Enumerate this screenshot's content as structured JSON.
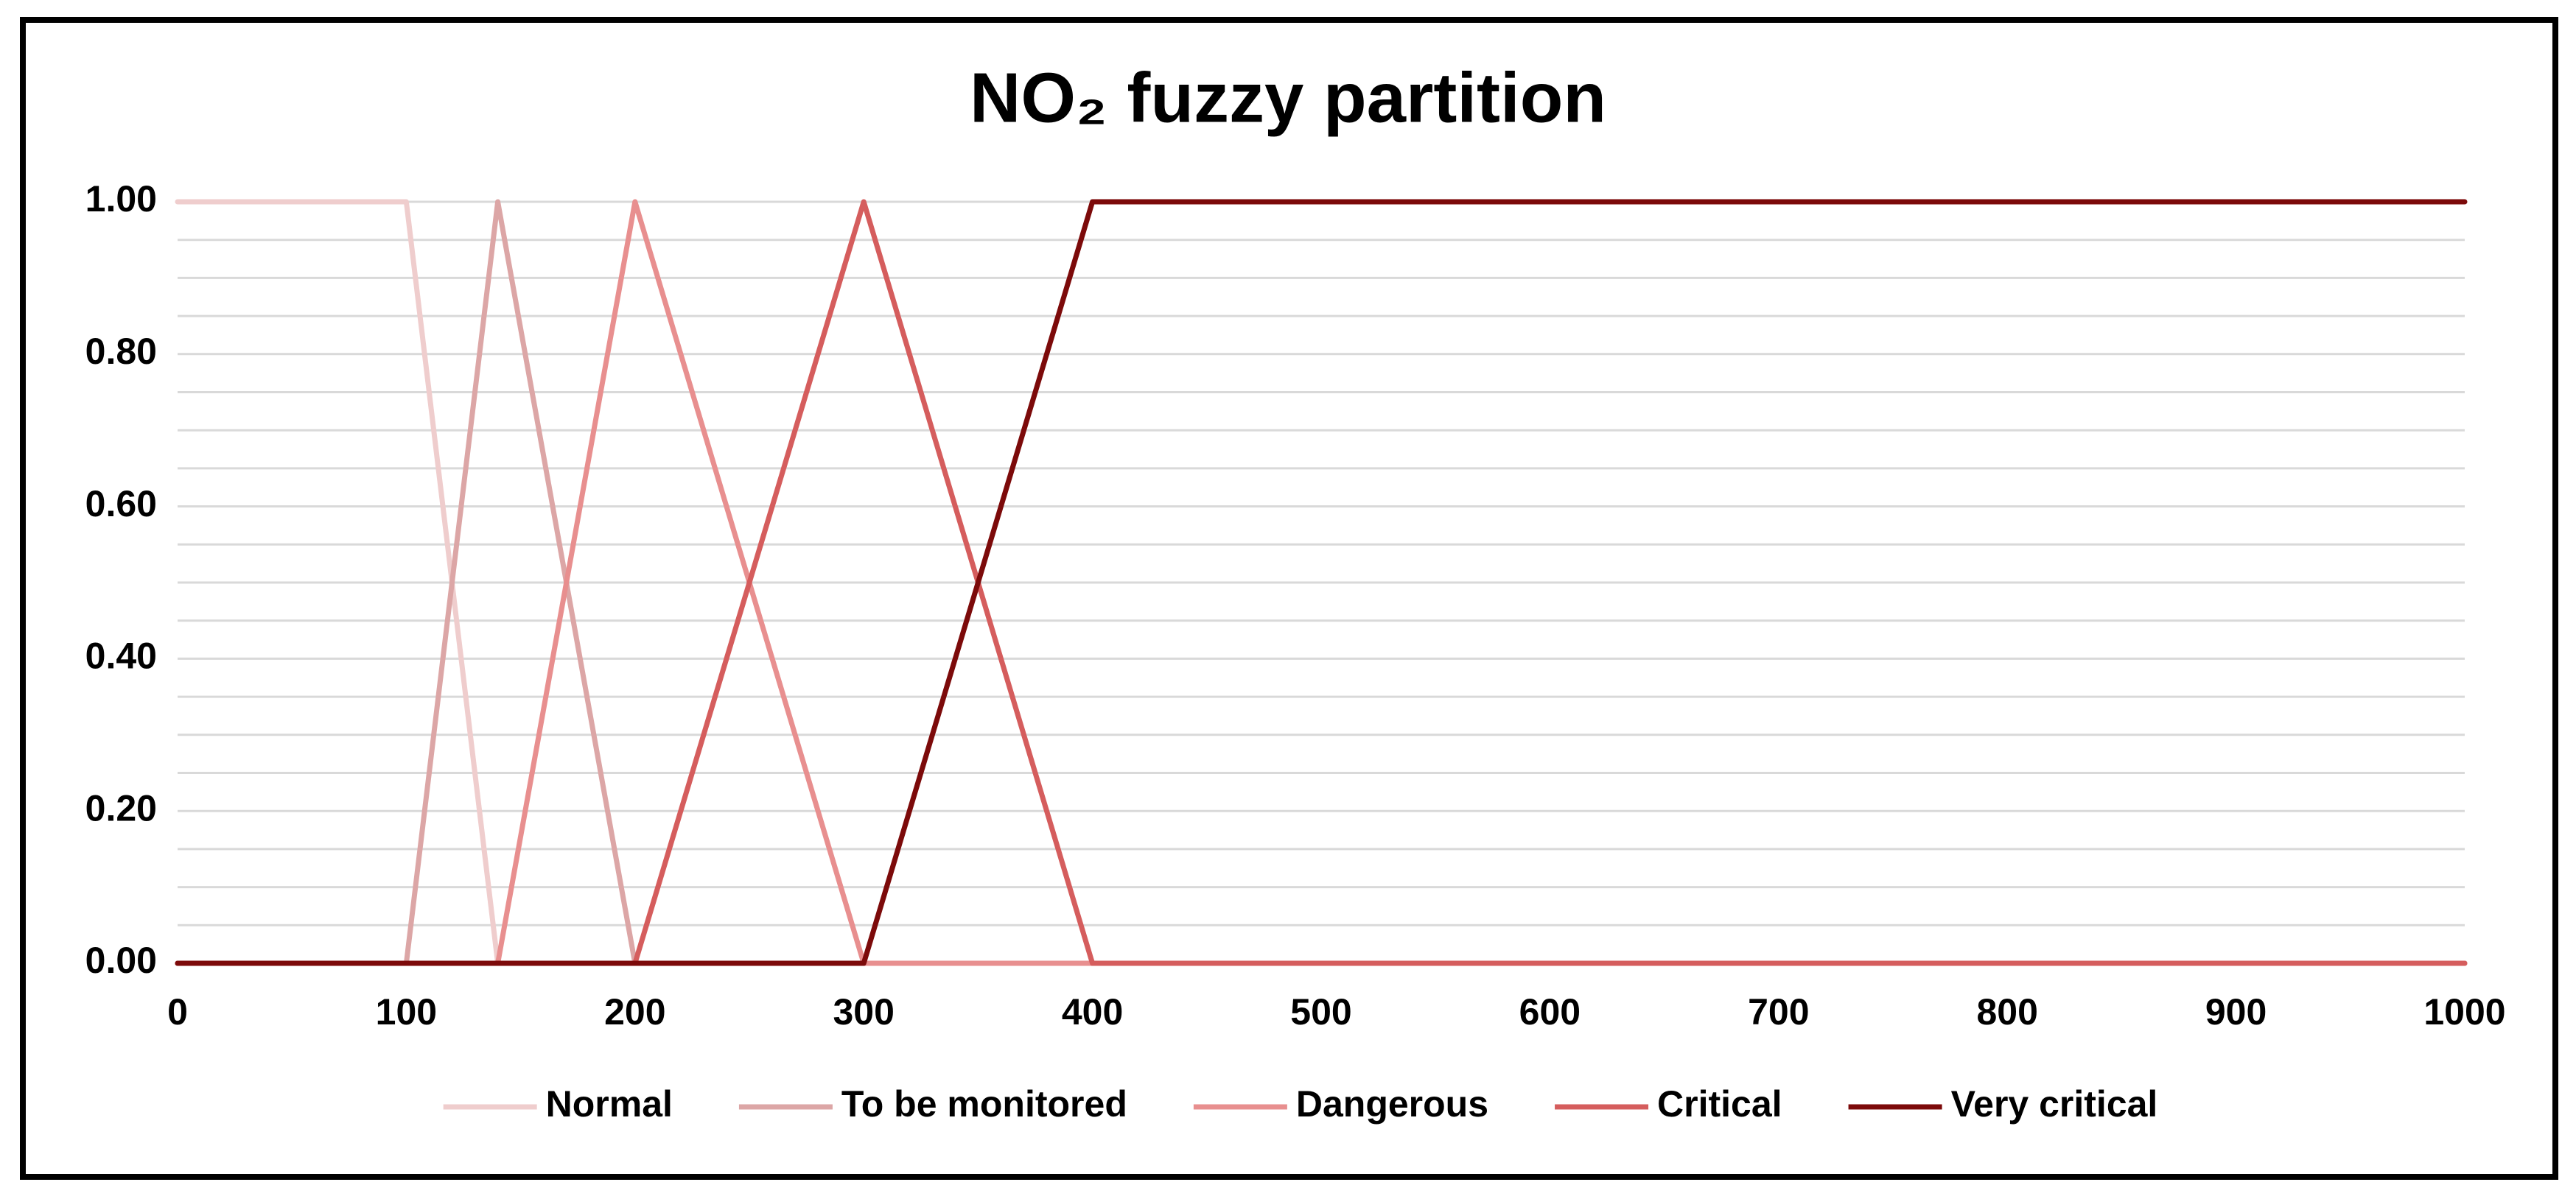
{
  "chart_data": {
    "type": "line",
    "title": "NO₂ fuzzy partition",
    "xlim": [
      0,
      1000
    ],
    "xticks": [
      0,
      100,
      200,
      300,
      400,
      500,
      600,
      700,
      800,
      900,
      1000
    ],
    "ylim": [
      0,
      1
    ],
    "yticks": [
      {
        "value": 0,
        "label": "0.00"
      },
      {
        "value": 0.2,
        "label": "0.20"
      },
      {
        "value": 0.4,
        "label": "0.40"
      },
      {
        "value": 0.6,
        "label": "0.60"
      },
      {
        "value": 0.8,
        "label": "0.80"
      },
      {
        "value": 1,
        "label": "1.00"
      }
    ],
    "minor_yticks": [
      0.05,
      0.1,
      0.15,
      0.25,
      0.3,
      0.35,
      0.45,
      0.5,
      0.55,
      0.65,
      0.7,
      0.75,
      0.85,
      0.9,
      0.95
    ],
    "grid": true,
    "legend": "bottom",
    "series": [
      {
        "name": "Normal",
        "color": "#efcdcd",
        "x": [
          0,
          100,
          140,
          1000
        ],
        "values": [
          1,
          1,
          0,
          0
        ]
      },
      {
        "name": "To be monitored",
        "color": "#dca6a6",
        "x": [
          0,
          100,
          140,
          200,
          1000
        ],
        "values": [
          0,
          0,
          1,
          0,
          0
        ]
      },
      {
        "name": "Dangerous",
        "color": "#e88f8f",
        "x": [
          0,
          140,
          200,
          300,
          1000
        ],
        "values": [
          0,
          0,
          1,
          0,
          0
        ]
      },
      {
        "name": "Critical",
        "color": "#d55d5d",
        "x": [
          0,
          200,
          300,
          400,
          1000
        ],
        "values": [
          0,
          0,
          1,
          0,
          0
        ]
      },
      {
        "name": "Very critical",
        "color": "#7c0a0a",
        "x": [
          0,
          300,
          400,
          1000
        ],
        "values": [
          0,
          0,
          1,
          1
        ]
      }
    ]
  }
}
